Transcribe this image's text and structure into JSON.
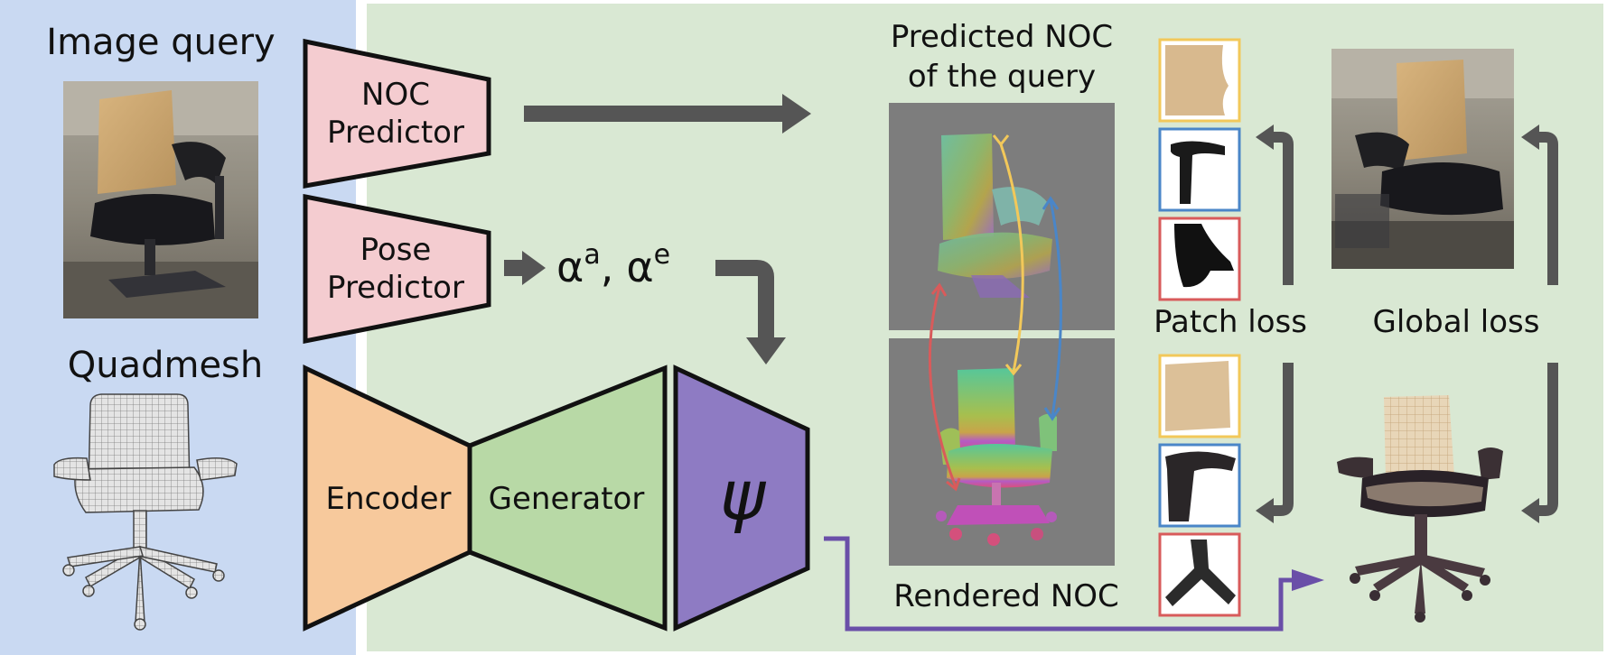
{
  "colors": {
    "left_panel": "#c9d9f2",
    "right_panel": "#d9e8d3",
    "noc_predictor": "#f4ccd0",
    "pose_predictor": "#f4ccd0",
    "encoder": "#f7c99c",
    "generator": "#b8d9a6",
    "psi": "#8e7bc3",
    "arrow_dark": "#555555",
    "arrow_purple": "#6a4fa8",
    "noc_bg": "#7d7d7d",
    "yellow_accent": "#f2c85a",
    "blue_accent": "#4a86c8",
    "red_accent": "#d85b5b"
  },
  "labels": {
    "image_query": "Image query",
    "quadmesh": "Quadmesh",
    "noc_predictor_line1": "NOC",
    "noc_predictor_line2": "Predictor",
    "pose_predictor_line1": "Pose",
    "pose_predictor_line2": "Predictor",
    "encoder": "Encoder",
    "generator": "Generator",
    "psi": "ψ",
    "alpha_a": "α",
    "alpha_a_sup": "a",
    "alpha_sep": ",",
    "alpha_e": "α",
    "alpha_e_sup": "e",
    "predicted_noc_line1": "Predicted NOC",
    "predicted_noc_line2": "of the query",
    "rendered_noc": "Rendered NOC",
    "patch_loss": "Patch loss",
    "global_loss": "Global loss"
  },
  "icons": {
    "query_photo": "chair-photo-icon",
    "quadmesh_model": "chair-wireframe-icon",
    "predicted_noc_map": "chair-noc-icon",
    "rendered_noc_map": "chair-rendered-noc-icon",
    "rendered_chair": "chair-render-icon"
  }
}
